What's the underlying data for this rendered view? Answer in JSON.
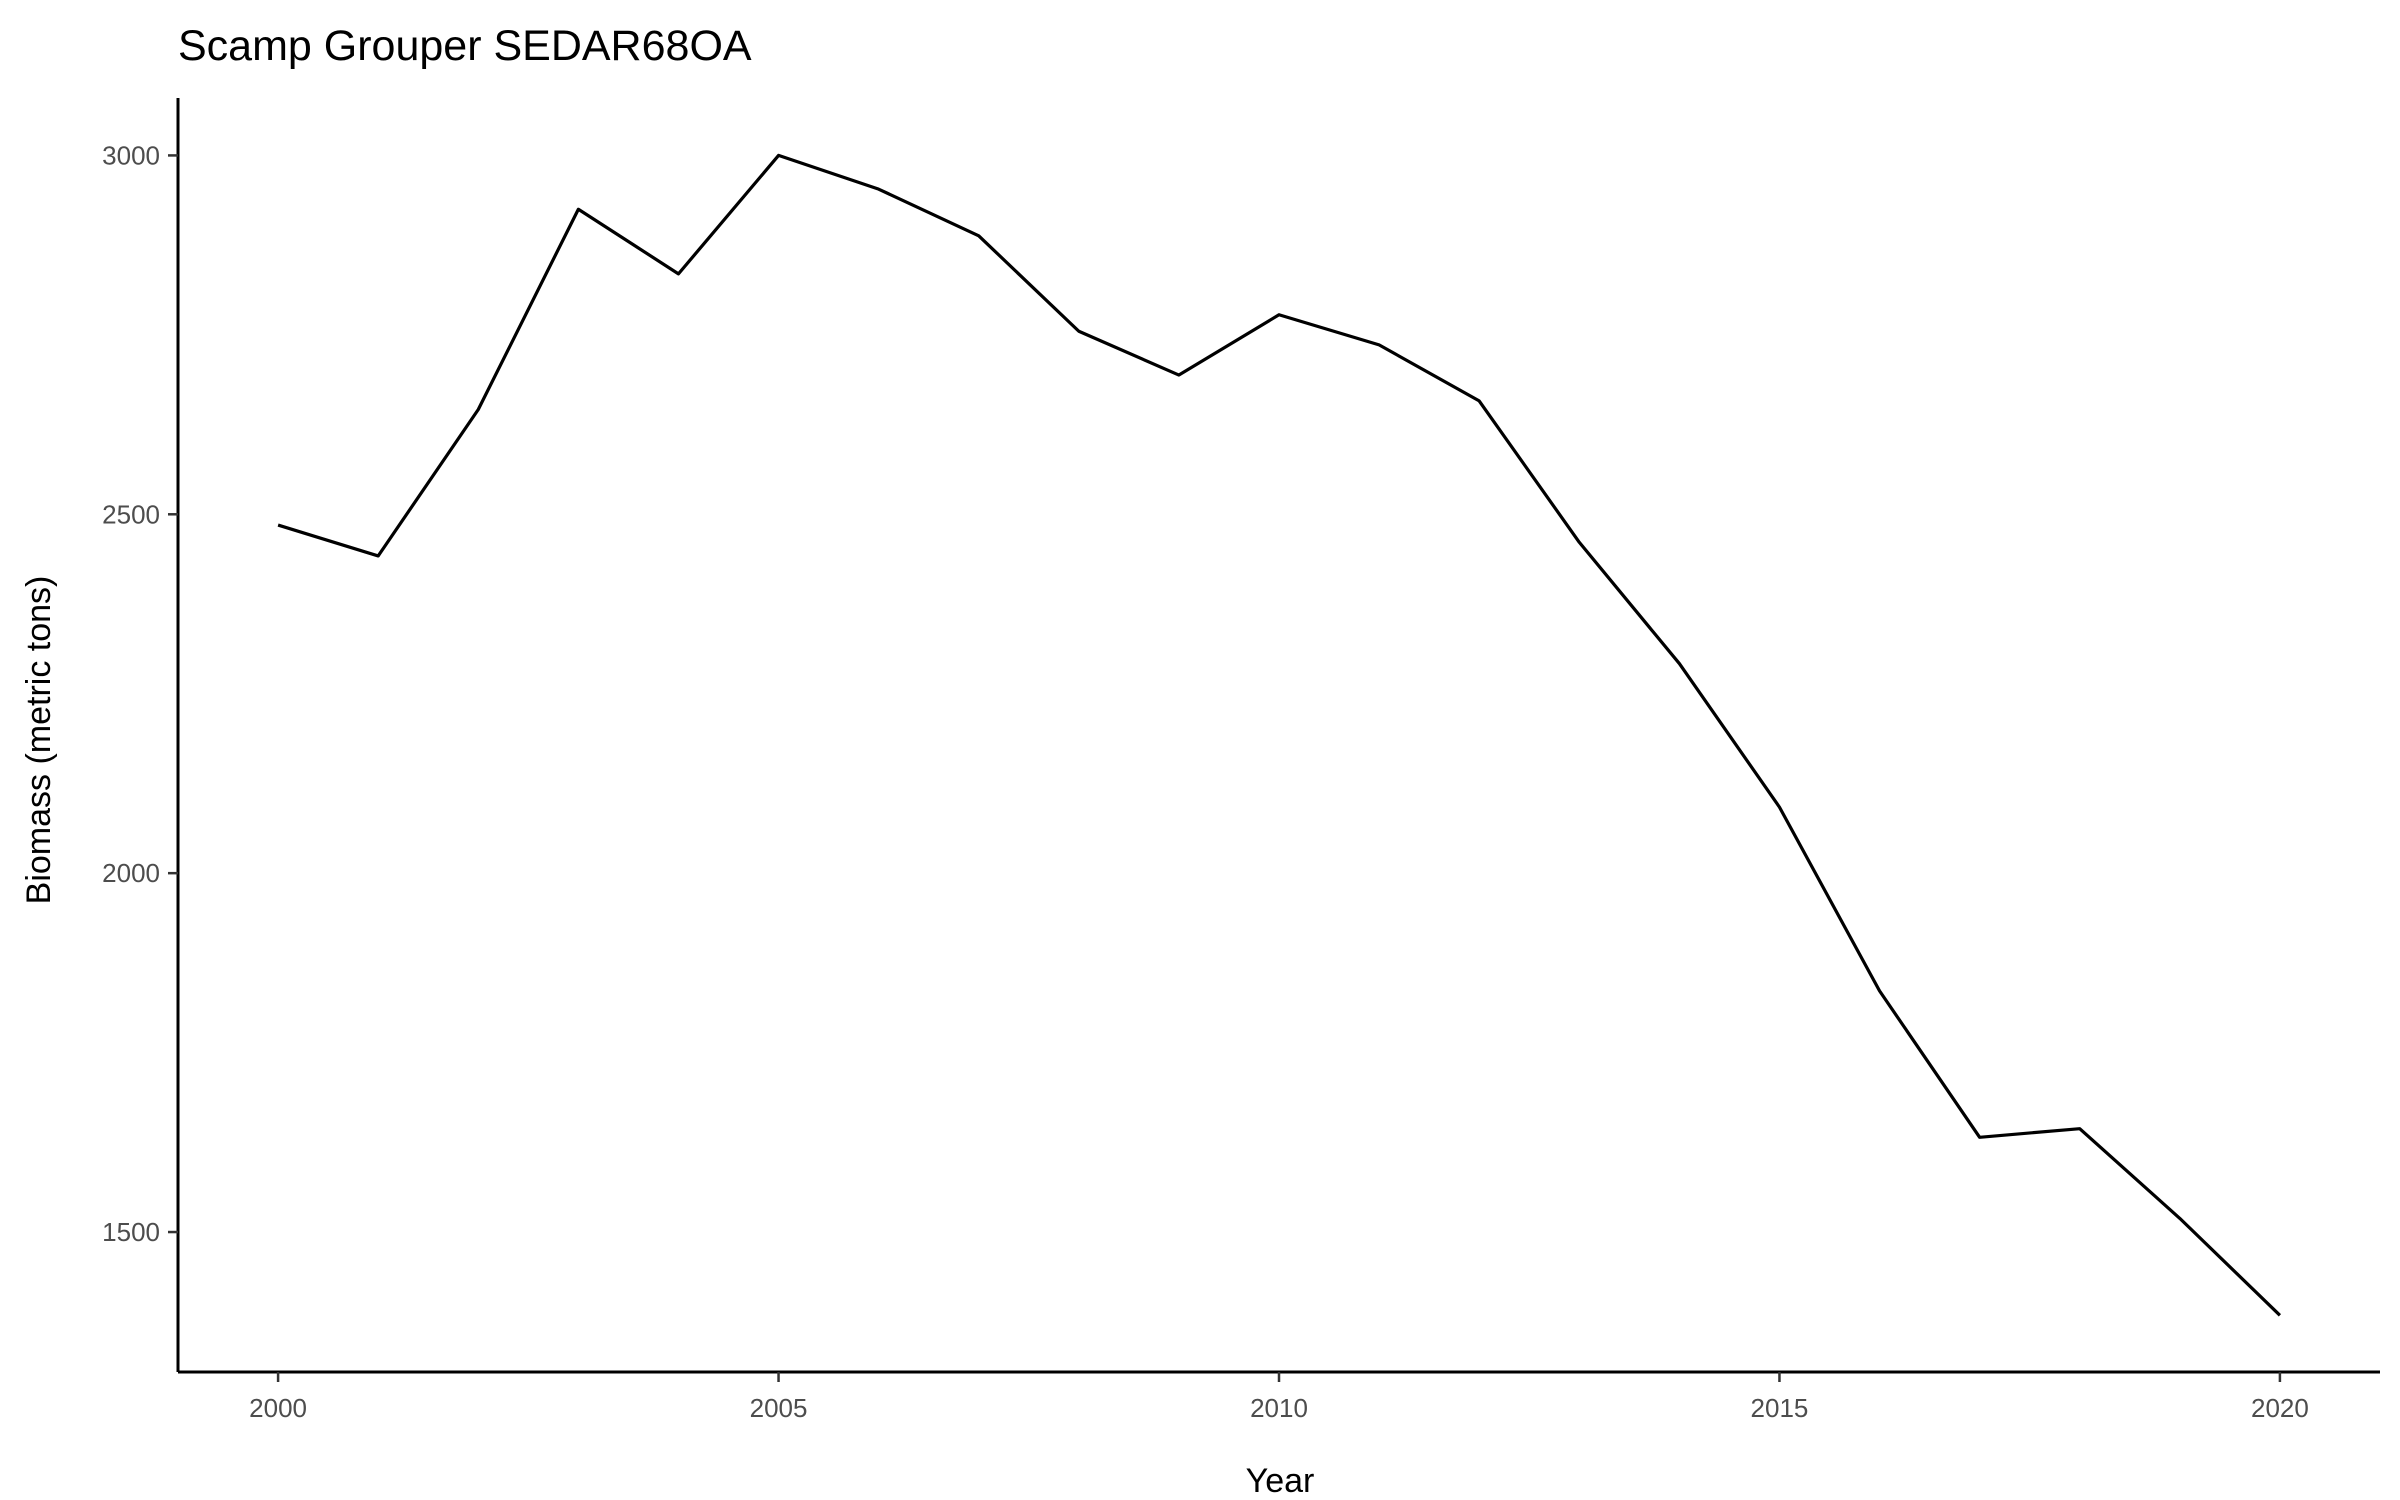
{
  "chart_data": {
    "type": "line",
    "title": "Scamp Grouper SEDAR68OA",
    "xlabel": "Year",
    "ylabel": "Biomass (metric tons)",
    "xlim": [
      1999,
      2021
    ],
    "ylim": [
      1305,
      3080
    ],
    "x_ticks": [
      2000,
      2005,
      2010,
      2015,
      2020
    ],
    "y_ticks": [
      1500,
      2000,
      2500,
      3000
    ],
    "grid": false,
    "series": [
      {
        "x": [
          2000,
          2001,
          2002,
          2003,
          2004,
          2005,
          2006,
          2007,
          2008,
          2009,
          2010,
          2011,
          2012,
          2013,
          2014,
          2015,
          2016,
          2017,
          2018,
          2019,
          2020
        ],
        "values": [
          2485,
          2442,
          2646,
          2925,
          2835,
          3000,
          2953,
          2888,
          2755,
          2694,
          2778,
          2736,
          2658,
          2461,
          2292,
          2092,
          1836,
          1632,
          1644,
          1519,
          1384
        ]
      }
    ],
    "colors": {
      "line": "#000000",
      "axis": "#000000",
      "tick_label": "#4d4d4d"
    }
  }
}
